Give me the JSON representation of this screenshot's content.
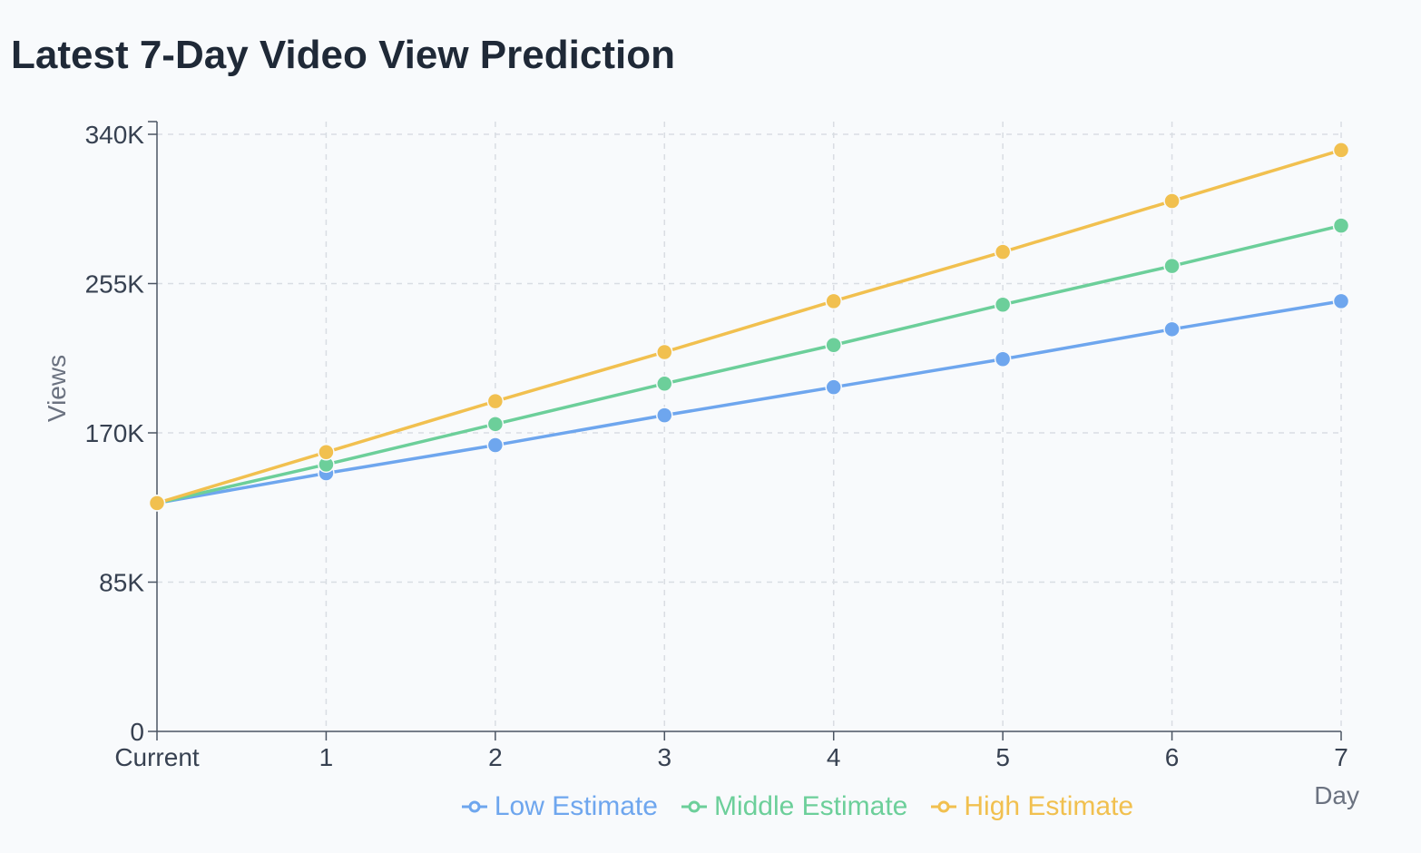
{
  "title": "Latest 7-Day Video View Prediction",
  "chart_data": {
    "type": "line",
    "x": [
      "Current",
      "1",
      "2",
      "3",
      "4",
      "5",
      "6",
      "7"
    ],
    "xlabel": "Day",
    "ylabel": "Views",
    "ylim": [
      0,
      340000
    ],
    "yticks": [
      0,
      85000,
      170000,
      255000,
      340000
    ],
    "ytick_labels": [
      "0",
      "85K",
      "170K",
      "255K",
      "340K"
    ],
    "grid": true,
    "legend": "bottom",
    "series": [
      {
        "name": "Low Estimate",
        "color": "#6ea6ee",
        "values": [
          130000,
          147000,
          163000,
          180000,
          196000,
          212000,
          229000,
          245000
        ]
      },
      {
        "name": "Middle Estimate",
        "color": "#6ccf9a",
        "values": [
          130000,
          152000,
          175000,
          198000,
          220000,
          243000,
          265000,
          288000
        ]
      },
      {
        "name": "High Estimate",
        "color": "#f1c04f",
        "values": [
          130000,
          159000,
          188000,
          216000,
          245000,
          273000,
          302000,
          331000
        ]
      }
    ]
  }
}
